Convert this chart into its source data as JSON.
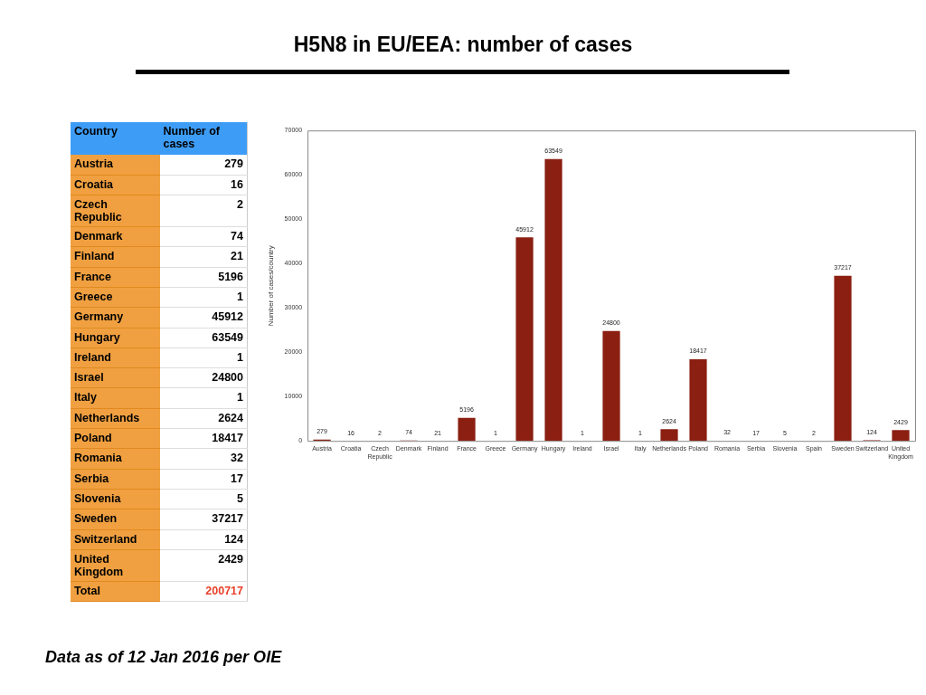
{
  "chart_data": [
    {
      "type": "other",
      "xlabel": "Country",
      "ylabel": "Number of cases",
      "categories": [
        "Austria",
        "Croatia",
        "Czech Republic",
        "Denmark",
        "Finland",
        "France",
        "Greece",
        "Germany",
        "Hungary",
        "Ireland",
        "Israel",
        "Italy",
        "Netherlands",
        "Poland",
        "Romania",
        "Serbia",
        "Slovenia",
        "Sweden",
        "Switzerland",
        "United Kingdom"
      ],
      "values": [
        279,
        16,
        2,
        74,
        21,
        5196,
        1,
        45912,
        63549,
        1,
        24800,
        1,
        2624,
        18417,
        32,
        17,
        5,
        37217,
        124,
        2429
      ],
      "data_labels": true,
      "annotations": [
        "Total"
      ],
      "totals": [
        "200717"
      ]
    },
    {
      "type": "bar",
      "title": "H5N8 in EU/EEA: number of cases",
      "ylabel": "Number of cases/country",
      "categories": [
        "Austria",
        "Croatia",
        "Czech Republic",
        "Denmark",
        "Finland",
        "France",
        "Greece",
        "Germany",
        "Hungary",
        "Ireland",
        "Israel",
        "Italy",
        "Netherlands",
        "Poland",
        "Romania",
        "Serbia",
        "Slovenia",
        "Spain",
        "Sweden",
        "Switzerland",
        "United Kingdom"
      ],
      "values": [
        279,
        16,
        2,
        74,
        21,
        5196,
        1,
        45912,
        63549,
        1,
        24800,
        1,
        2624,
        18417,
        32,
        17,
        5,
        2,
        37217,
        124,
        2429
      ],
      "color": "#8b1f12",
      "ylim": [
        0,
        70000
      ],
      "yticks": [
        0,
        10000,
        20000,
        30000,
        40000,
        50000,
        60000,
        70000
      ],
      "grid": false,
      "legend": false,
      "data_labels": true,
      "annotations": [
        "Data as of 12 Jan 2016 per OIE"
      ]
    }
  ]
}
